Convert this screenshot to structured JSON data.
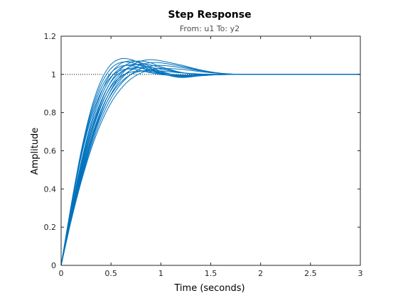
{
  "chart_data": {
    "type": "line",
    "title": "Step Response",
    "subtitle": "From: u1  To: y2",
    "xlabel": "Time (seconds)",
    "ylabel": "Amplitude",
    "xlim": [
      0,
      3
    ],
    "ylim": [
      0,
      1.2
    ],
    "x_ticks": [
      0,
      0.5,
      1,
      1.5,
      2,
      2.5,
      3
    ],
    "x_tick_labels": [
      "0",
      "0.5",
      "1",
      "1.5",
      "2",
      "2.5",
      "3"
    ],
    "y_ticks": [
      0,
      0.2,
      0.4,
      0.6,
      0.8,
      1.0,
      1.2
    ],
    "y_tick_labels": [
      "0",
      "0.2",
      "0.4",
      "0.6",
      "0.8",
      "1",
      "1.2"
    ],
    "grid": false,
    "reference_line": {
      "y": 1.0,
      "style": "dotted",
      "color": "#000000"
    },
    "series_color": "#0072BD",
    "series": [
      {
        "x": [
          0,
          0.1,
          0.2,
          0.3,
          0.4,
          0.5,
          0.6,
          0.7,
          0.8,
          0.9,
          1.0,
          1.2,
          1.4,
          1.6,
          1.8,
          2.0,
          3.0
        ],
        "values": [
          0,
          0.301,
          0.565,
          0.769,
          0.907,
          0.987,
          1.022,
          1.028,
          1.02,
          1.008,
          0.999,
          0.993,
          0.997,
          1.0,
          1.0,
          1.0,
          1.0
        ]
      },
      {
        "x": [
          0,
          0.1,
          0.2,
          0.3,
          0.4,
          0.5,
          0.6,
          0.7,
          0.8,
          0.9,
          1.0,
          1.2,
          1.4,
          1.6,
          1.8,
          2.0,
          3.0
        ],
        "values": [
          0,
          0.305,
          0.575,
          0.785,
          0.927,
          1.009,
          1.043,
          1.046,
          1.033,
          1.016,
          1.002,
          0.99,
          0.995,
          1.0,
          1.0,
          1.0,
          1.0
        ]
      },
      {
        "x": [
          0,
          0.1,
          0.2,
          0.3,
          0.4,
          0.5,
          0.6,
          0.7,
          0.8,
          0.9,
          1.0,
          1.2,
          1.4,
          1.6,
          1.8,
          2.0,
          3.0
        ],
        "values": [
          0,
          0.309,
          0.586,
          0.801,
          0.947,
          1.031,
          1.063,
          1.063,
          1.045,
          1.023,
          1.004,
          0.987,
          0.994,
          1.0,
          1.0,
          1.0,
          1.0
        ]
      },
      {
        "x": [
          0,
          0.1,
          0.2,
          0.3,
          0.4,
          0.5,
          0.6,
          0.7,
          0.8,
          0.9,
          1.0,
          1.2,
          1.4,
          1.6,
          1.8,
          2.0,
          3.0
        ],
        "values": [
          0,
          0.314,
          0.596,
          0.817,
          0.967,
          1.052,
          1.082,
          1.078,
          1.056,
          1.029,
          1.005,
          0.984,
          0.993,
          1.0,
          1.0,
          1.0,
          1.0
        ]
      },
      {
        "x": [
          0,
          0.1,
          0.2,
          0.3,
          0.4,
          0.5,
          0.6,
          0.7,
          0.8,
          0.9,
          1.0,
          1.2,
          1.4,
          1.6,
          1.8,
          2.0,
          3.0
        ],
        "values": [
          0,
          0.272,
          0.505,
          0.695,
          0.838,
          0.935,
          0.99,
          1.012,
          1.017,
          1.013,
          1.006,
          0.997,
          0.997,
          0.999,
          1.0,
          1.0,
          1.0
        ]
      },
      {
        "x": [
          0,
          0.1,
          0.2,
          0.3,
          0.4,
          0.5,
          0.6,
          0.7,
          0.8,
          0.9,
          1.0,
          1.2,
          1.4,
          1.6,
          1.8,
          2.0,
          3.0
        ],
        "values": [
          0,
          0.277,
          0.515,
          0.713,
          0.86,
          0.96,
          1.013,
          1.033,
          1.033,
          1.022,
          1.01,
          0.995,
          0.996,
          0.999,
          1.0,
          1.0,
          1.0
        ]
      },
      {
        "x": [
          0,
          0.1,
          0.2,
          0.3,
          0.4,
          0.5,
          0.6,
          0.7,
          0.8,
          0.9,
          1.0,
          1.2,
          1.4,
          1.6,
          1.8,
          2.0,
          3.0
        ],
        "values": [
          0,
          0.281,
          0.526,
          0.73,
          0.882,
          0.983,
          1.035,
          1.052,
          1.048,
          1.031,
          1.012,
          0.993,
          0.994,
          0.999,
          1.0,
          1.0,
          1.0
        ]
      },
      {
        "x": [
          0,
          0.1,
          0.2,
          0.3,
          0.4,
          0.5,
          0.6,
          0.7,
          0.8,
          0.9,
          1.0,
          1.2,
          1.4,
          1.6,
          1.8,
          2.0,
          3.0
        ],
        "values": [
          0,
          0.286,
          0.537,
          0.746,
          0.902,
          1.006,
          1.057,
          1.071,
          1.061,
          1.039,
          1.016,
          0.99,
          0.993,
          0.999,
          1.0,
          1.0,
          1.0
        ]
      },
      {
        "x": [
          0,
          0.1,
          0.2,
          0.3,
          0.4,
          0.5,
          0.6,
          0.7,
          0.8,
          0.9,
          1.0,
          1.2,
          1.4,
          1.6,
          1.8,
          2.0,
          3.0
        ],
        "values": [
          0,
          0.251,
          0.467,
          0.648,
          0.79,
          0.893,
          0.96,
          0.999,
          1.017,
          1.021,
          1.018,
          1.008,
          1.002,
          1.0,
          1.0,
          1.0,
          1.0
        ]
      },
      {
        "x": [
          0,
          0.1,
          0.2,
          0.3,
          0.4,
          0.5,
          0.6,
          0.7,
          0.8,
          0.9,
          1.0,
          1.2,
          1.4,
          1.6,
          1.8,
          2.0,
          3.0
        ],
        "values": [
          0,
          0.256,
          0.477,
          0.664,
          0.811,
          0.916,
          0.983,
          1.022,
          1.037,
          1.036,
          1.027,
          1.009,
          1.0,
          1.0,
          1.0,
          1.0,
          1.0
        ]
      },
      {
        "x": [
          0,
          0.1,
          0.2,
          0.3,
          0.4,
          0.5,
          0.6,
          0.7,
          0.8,
          0.9,
          1.0,
          1.2,
          1.4,
          1.6,
          1.8,
          2.0,
          3.0
        ],
        "values": [
          0,
          0.26,
          0.488,
          0.681,
          0.832,
          0.94,
          1.007,
          1.043,
          1.054,
          1.049,
          1.034,
          1.01,
          0.999,
          0.999,
          1.0,
          1.0,
          1.0
        ]
      },
      {
        "x": [
          0,
          0.1,
          0.2,
          0.3,
          0.4,
          0.5,
          0.6,
          0.7,
          0.8,
          0.9,
          1.0,
          1.2,
          1.4,
          1.6,
          1.8,
          2.0,
          3.0
        ],
        "values": [
          0,
          0.265,
          0.498,
          0.697,
          0.853,
          0.963,
          1.029,
          1.063,
          1.07,
          1.06,
          1.04,
          1.011,
          0.998,
          0.999,
          1.0,
          1.0,
          1.0
        ]
      },
      {
        "x": [
          0,
          0.1,
          0.2,
          0.3,
          0.4,
          0.5,
          0.6,
          0.7,
          0.8,
          0.9,
          1.0,
          1.2,
          1.4,
          1.6,
          1.8,
          2.0,
          3.0
        ],
        "values": [
          0,
          0.232,
          0.435,
          0.607,
          0.745,
          0.851,
          0.925,
          0.976,
          1.007,
          1.024,
          1.031,
          1.027,
          1.014,
          1.004,
          1.0,
          1.0,
          1.0
        ]
      },
      {
        "x": [
          0,
          0.1,
          0.2,
          0.3,
          0.4,
          0.5,
          0.6,
          0.7,
          0.8,
          0.9,
          1.0,
          1.2,
          1.4,
          1.6,
          1.8,
          2.0,
          3.0
        ],
        "values": [
          0,
          0.236,
          0.444,
          0.622,
          0.765,
          0.874,
          0.95,
          1.0,
          1.03,
          1.044,
          1.047,
          1.036,
          1.018,
          1.005,
          1.0,
          1.0,
          1.0
        ]
      },
      {
        "x": [
          0,
          0.1,
          0.2,
          0.3,
          0.4,
          0.5,
          0.6,
          0.7,
          0.8,
          0.9,
          1.0,
          1.2,
          1.4,
          1.6,
          1.8,
          2.0,
          3.0
        ],
        "values": [
          0,
          0.241,
          0.453,
          0.637,
          0.784,
          0.897,
          0.974,
          1.023,
          1.051,
          1.061,
          1.06,
          1.043,
          1.021,
          1.006,
          1.0,
          1.0,
          1.0
        ]
      },
      {
        "x": [
          0,
          0.1,
          0.2,
          0.3,
          0.4,
          0.5,
          0.6,
          0.7,
          0.8,
          0.9,
          1.0,
          1.2,
          1.4,
          1.6,
          1.8,
          2.0,
          3.0
        ],
        "values": [
          0,
          0.245,
          0.463,
          0.652,
          0.804,
          0.919,
          0.997,
          1.045,
          1.07,
          1.077,
          1.071,
          1.049,
          1.023,
          1.006,
          1.0,
          1.0,
          1.0
        ]
      }
    ]
  }
}
